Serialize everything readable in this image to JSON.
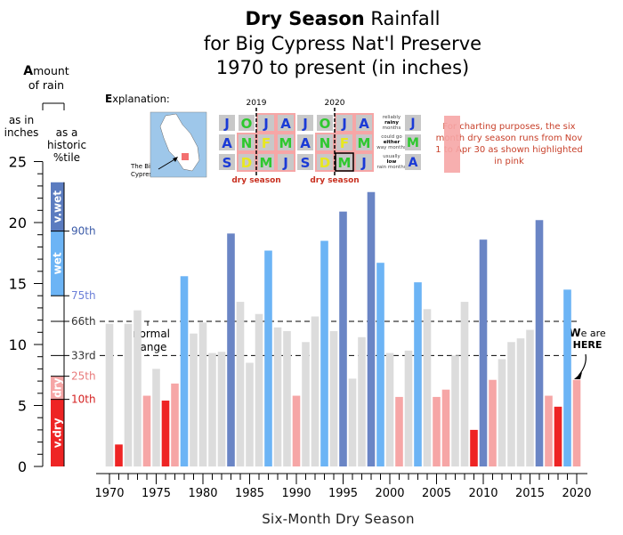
{
  "title": {
    "bold_part": "Dry Season",
    "line1_rest": " Rainfall",
    "line2": "for Big Cypress Nat'l Preserve",
    "line3": "1970 to present (in inches)"
  },
  "y_axis_label": {
    "first_letter": "A",
    "line1_rest": "mount",
    "line2": "of rain",
    "left_sub": "as in inches",
    "right_sub": "as a historic %tile"
  },
  "explanation": {
    "first_letter": "E",
    "rest": "xplanation:",
    "map_label": "The Big Cypress",
    "year_labels": [
      "2019",
      "2020"
    ],
    "dry_season_label": "dry season",
    "month_grid": [
      [
        "J",
        "O",
        "J",
        "A",
        "J",
        "O",
        "J",
        "A"
      ],
      [
        "A",
        "N",
        "F",
        "M",
        "A",
        "N",
        "F",
        "M"
      ],
      [
        "S",
        "D",
        "M",
        "J",
        "S",
        "D",
        "M",
        "J"
      ]
    ],
    "legend": [
      {
        "text_pre": "reliably",
        "text_bold": "rainy",
        "text_post": "months",
        "letter": "J"
      },
      {
        "text_pre": "could go",
        "text_bold": "either",
        "text_post": "way months",
        "letter": "M"
      },
      {
        "text_pre": "usually",
        "text_bold": "low",
        "text_post": "rain months",
        "letter": "A"
      }
    ],
    "note": "For charting purposes, the six month dry season runs from Nov 1 to Apr 30 as shown highlighted in pink"
  },
  "annotations": {
    "normal_range": "normal range",
    "here_first": "W",
    "here_rest": "e are",
    "here_line2": "HERE"
  },
  "percentile_labels": [
    {
      "label": "90th",
      "value": 19.3,
      "color": "#3b5ba8"
    },
    {
      "label": "75th",
      "value": 14.0,
      "color": "#6b7fd8"
    },
    {
      "label": "66th",
      "value": 11.9,
      "color": "#333333"
    },
    {
      "label": "33rd",
      "value": 9.1,
      "color": "#333333"
    },
    {
      "label": "25th",
      "value": 7.4,
      "color": "#e87a7a"
    },
    {
      "label": "10th",
      "value": 5.5,
      "color": "#d42020"
    }
  ],
  "category_bar": [
    {
      "name": "v.wet",
      "from": 19.3,
      "to": 23.3,
      "color": "#5b7cc0"
    },
    {
      "name": "wet",
      "from": 14.0,
      "to": 19.3,
      "color": "#6cb4f5"
    },
    {
      "name": "",
      "from": 7.4,
      "to": 14.0,
      "color": "#ffffff"
    },
    {
      "name": "dry",
      "from": 5.5,
      "to": 7.4,
      "color": "#f6a6a6"
    },
    {
      "name": "v.dry",
      "from": 0,
      "to": 5.5,
      "color": "#ee2424"
    }
  ],
  "colors": {
    "very_wet": "#6a85c5",
    "wet": "#6cb4f5",
    "normal": "#dcdcdc",
    "dry": "#f6a6a6",
    "very_dry": "#ee2424"
  },
  "chart_data": {
    "type": "bar",
    "xlabel": "Six-Month Dry Season",
    "ylabel": "Amount of rain",
    "ylim": [
      0,
      25
    ],
    "y_ticks": [
      0,
      5,
      10,
      15,
      20,
      25
    ],
    "x_ticks": [
      1970,
      1975,
      1980,
      1985,
      1990,
      1995,
      2000,
      2005,
      2010,
      2015,
      2020
    ],
    "reference_lines": [
      11.9,
      9.1
    ],
    "grid": false,
    "x": [
      1970,
      1971,
      1972,
      1973,
      1974,
      1975,
      1976,
      1977,
      1978,
      1979,
      1980,
      1981,
      1982,
      1983,
      1984,
      1985,
      1986,
      1987,
      1988,
      1989,
      1990,
      1991,
      1992,
      1993,
      1994,
      1995,
      1996,
      1997,
      1998,
      1999,
      2000,
      2001,
      2002,
      2003,
      2004,
      2005,
      2006,
      2007,
      2008,
      2009,
      2010,
      2011,
      2012,
      2013,
      2014,
      2015,
      2016,
      2017,
      2018,
      2019,
      2020
    ],
    "values": [
      11.7,
      1.8,
      11.7,
      12.8,
      5.8,
      8.0,
      5.4,
      6.8,
      15.6,
      10.9,
      11.8,
      9.3,
      9.4,
      19.1,
      13.5,
      8.5,
      12.5,
      17.7,
      11.4,
      11.1,
      5.8,
      10.2,
      12.3,
      18.5,
      11.1,
      20.9,
      7.2,
      10.6,
      22.5,
      16.7,
      9.3,
      5.7,
      9.5,
      15.1,
      12.9,
      5.7,
      6.3,
      9.1,
      13.5,
      3.0,
      18.6,
      7.1,
      8.8,
      10.2,
      10.5,
      11.2,
      20.2,
      5.8,
      4.9,
      14.5,
      7.1
    ],
    "categories": [
      "normal",
      "very_dry",
      "normal",
      "normal",
      "dry",
      "normal",
      "very_dry",
      "dry",
      "wet",
      "normal",
      "normal",
      "normal",
      "normal",
      "very_wet",
      "normal",
      "normal",
      "normal",
      "wet",
      "normal",
      "normal",
      "dry",
      "normal",
      "normal",
      "wet",
      "normal",
      "very_wet",
      "normal",
      "normal",
      "very_wet",
      "wet",
      "normal",
      "dry",
      "normal",
      "wet",
      "normal",
      "dry",
      "dry",
      "normal",
      "normal",
      "very_dry",
      "very_wet",
      "dry",
      "normal",
      "normal",
      "normal",
      "normal",
      "very_wet",
      "dry",
      "very_dry",
      "wet",
      "dry"
    ]
  }
}
